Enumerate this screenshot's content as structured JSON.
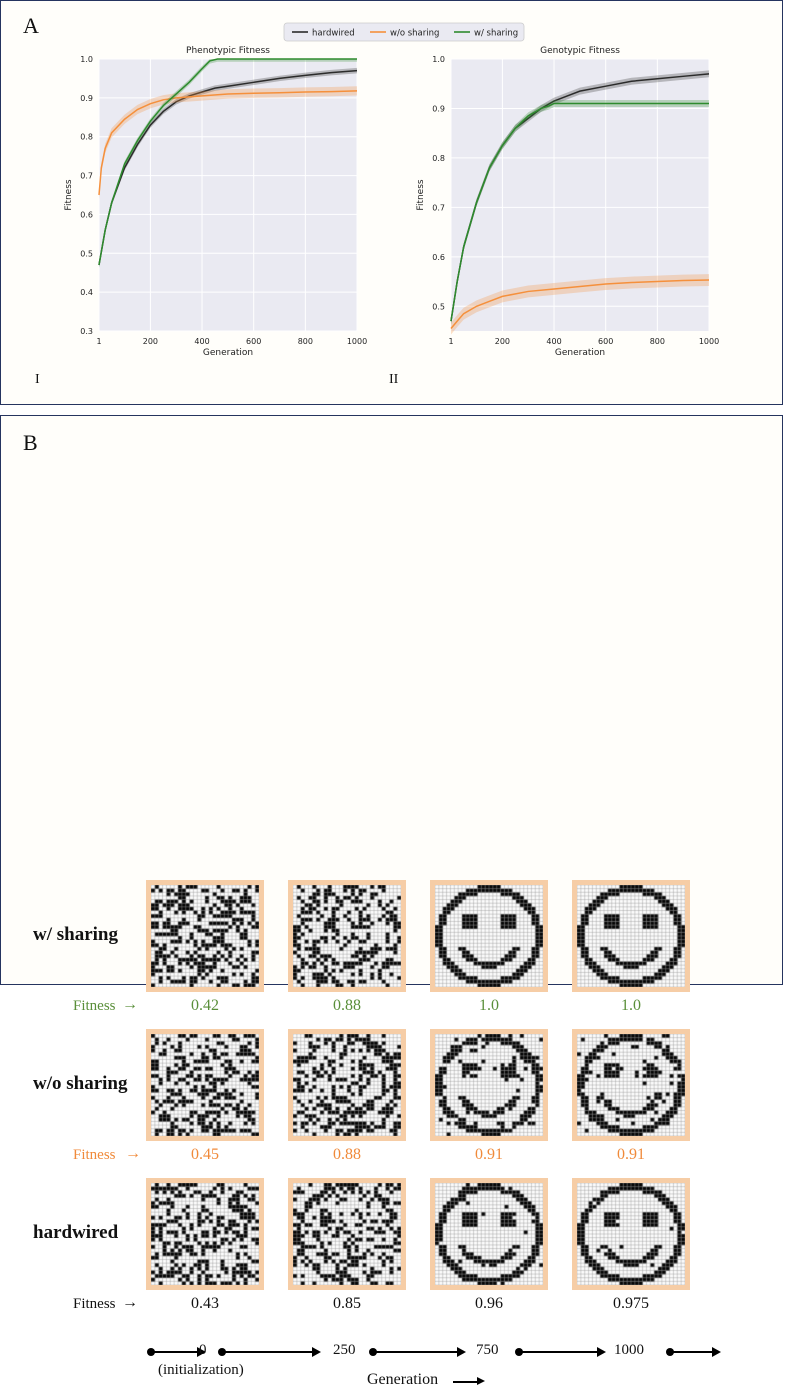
{
  "panel_a": {
    "letter": "A",
    "legend": [
      "hardwired",
      "w/o sharing",
      "w/ sharing"
    ],
    "colors": {
      "hardwired": "#2b2b2b",
      "wo_sharing": "#f5903c",
      "w_sharing": "#2e8b2e",
      "plot_bg": "#eaeaf2",
      "grid": "#ffffff"
    }
  },
  "chart_data": [
    {
      "type": "line",
      "title": "Phenotypic Fitness",
      "xlabel": "Generation",
      "ylabel": "Fitness",
      "xlim": [
        1,
        1000
      ],
      "ylim": [
        0.3,
        1.0
      ],
      "xticks": [
        1,
        200,
        400,
        600,
        800,
        1000
      ],
      "yticks": [
        0.3,
        0.4,
        0.5,
        0.6,
        0.7,
        0.8,
        0.9,
        1.0
      ],
      "grid": true,
      "legend_position": "top-center",
      "roman": "I",
      "series": [
        {
          "name": "hardwired",
          "x": [
            1,
            25,
            50,
            100,
            150,
            200,
            250,
            300,
            350,
            400,
            450,
            500,
            600,
            700,
            800,
            900,
            1000
          ],
          "y": [
            0.47,
            0.56,
            0.63,
            0.72,
            0.78,
            0.83,
            0.865,
            0.89,
            0.905,
            0.915,
            0.925,
            0.93,
            0.94,
            0.95,
            0.958,
            0.965,
            0.97
          ]
        },
        {
          "name": "w/o sharing",
          "x": [
            1,
            10,
            25,
            50,
            100,
            150,
            200,
            250,
            300,
            400,
            500,
            600,
            700,
            800,
            900,
            1000
          ],
          "y": [
            0.65,
            0.72,
            0.77,
            0.81,
            0.845,
            0.87,
            0.885,
            0.895,
            0.9,
            0.905,
            0.91,
            0.912,
            0.913,
            0.915,
            0.916,
            0.918
          ]
        },
        {
          "name": "w/ sharing",
          "x": [
            1,
            25,
            50,
            100,
            150,
            200,
            250,
            300,
            350,
            400,
            430,
            460,
            500,
            600,
            800,
            1000
          ],
          "y": [
            0.47,
            0.56,
            0.63,
            0.73,
            0.79,
            0.84,
            0.88,
            0.91,
            0.94,
            0.975,
            0.995,
            1.0,
            1.0,
            1.0,
            1.0,
            1.0
          ]
        }
      ]
    },
    {
      "type": "line",
      "title": "Genotypic Fitness",
      "xlabel": "Generation",
      "ylabel": "Fitness",
      "xlim": [
        1,
        1000
      ],
      "ylim": [
        0.45,
        1.0
      ],
      "xticks": [
        1,
        200,
        400,
        600,
        800,
        1000
      ],
      "yticks": [
        0.5,
        0.6,
        0.7,
        0.8,
        0.9,
        1.0
      ],
      "grid": true,
      "roman": "II",
      "series": [
        {
          "name": "hardwired",
          "x": [
            1,
            25,
            50,
            100,
            150,
            200,
            250,
            300,
            350,
            400,
            450,
            500,
            600,
            700,
            800,
            900,
            1000
          ],
          "y": [
            0.47,
            0.55,
            0.62,
            0.71,
            0.78,
            0.825,
            0.86,
            0.88,
            0.9,
            0.915,
            0.925,
            0.935,
            0.945,
            0.955,
            0.96,
            0.965,
            0.97
          ]
        },
        {
          "name": "w/o sharing",
          "x": [
            1,
            25,
            50,
            100,
            150,
            200,
            300,
            400,
            500,
            600,
            700,
            800,
            900,
            1000
          ],
          "y": [
            0.455,
            0.47,
            0.485,
            0.5,
            0.51,
            0.52,
            0.53,
            0.535,
            0.54,
            0.545,
            0.548,
            0.55,
            0.552,
            0.553
          ]
        },
        {
          "name": "w/ sharing",
          "x": [
            1,
            25,
            50,
            100,
            150,
            200,
            250,
            300,
            350,
            380,
            400,
            500,
            600,
            800,
            1000
          ],
          "y": [
            0.47,
            0.55,
            0.62,
            0.71,
            0.78,
            0.825,
            0.86,
            0.885,
            0.9,
            0.905,
            0.91,
            0.91,
            0.91,
            0.91,
            0.91
          ]
        }
      ]
    }
  ],
  "panel_b": {
    "letter": "B",
    "rows": [
      {
        "label": "w/ sharing",
        "fitness_label": "Fitness",
        "color": "#5a8f3a",
        "values": [
          "0.42",
          "0.88",
          "1.0",
          "1.0"
        ],
        "noise": [
          0.45,
          0.3,
          0.0,
          0.0
        ],
        "face": [
          0.0,
          0.45,
          1.0,
          1.0
        ]
      },
      {
        "label": "w/o sharing",
        "fitness_label": "Fitness",
        "color": "#f08a3a",
        "values": [
          "0.45",
          "0.88",
          "0.91",
          "0.91"
        ],
        "noise": [
          0.45,
          0.3,
          0.12,
          0.1
        ],
        "face": [
          0.0,
          0.45,
          0.85,
          0.88
        ]
      },
      {
        "label": "hardwired",
        "fitness_label": "Fitness",
        "color": "#111111",
        "values": [
          "0.43",
          "0.85",
          "0.96",
          "0.975"
        ],
        "noise": [
          0.45,
          0.3,
          0.05,
          0.03
        ],
        "face": [
          0.0,
          0.5,
          0.95,
          0.97
        ]
      }
    ],
    "generation_ticks": [
      "0",
      "250",
      "750",
      "1000"
    ],
    "initialization_label": "(initialization)",
    "generation_label": "Generation"
  }
}
